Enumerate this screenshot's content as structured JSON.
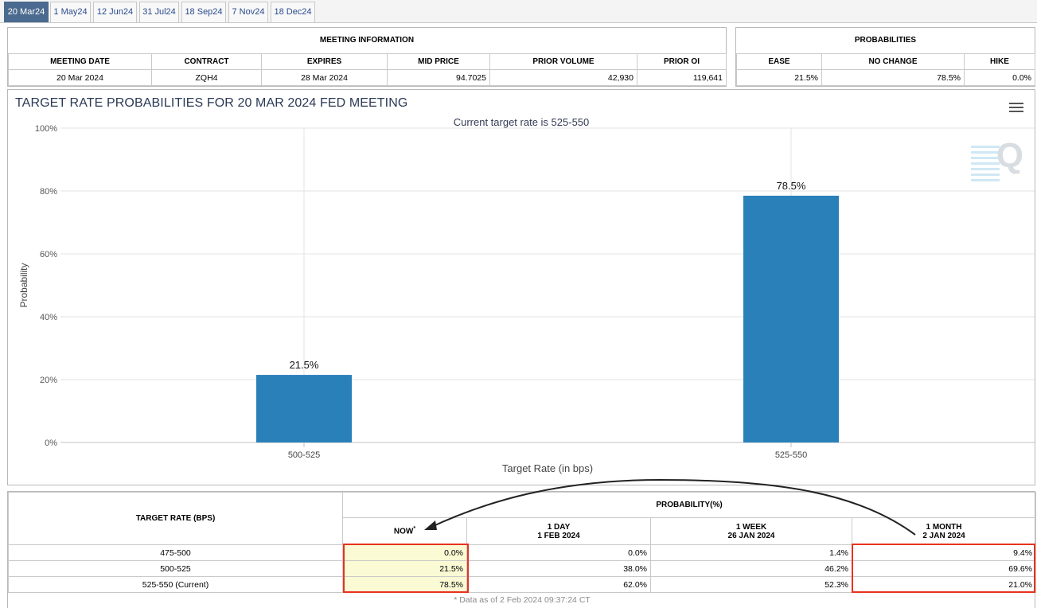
{
  "tabs": [
    "20 Mar24",
    "1 May24",
    "12 Jun24",
    "31 Jul24",
    "18 Sep24",
    "7 Nov24",
    "18 Dec24"
  ],
  "active_tab": 0,
  "meeting_info": {
    "title": "MEETING INFORMATION",
    "headers": [
      "MEETING DATE",
      "CONTRACT",
      "EXPIRES",
      "MID PRICE",
      "PRIOR VOLUME",
      "PRIOR OI"
    ],
    "row": [
      "20 Mar 2024",
      "ZQH4",
      "28 Mar 2024",
      "94.7025",
      "42,930",
      "119,641"
    ]
  },
  "probabilities": {
    "title": "PROBABILITIES",
    "headers": [
      "EASE",
      "NO CHANGE",
      "HIKE"
    ],
    "row": [
      "21.5%",
      "78.5%",
      "0.0%"
    ]
  },
  "chart": {
    "title": "TARGET RATE PROBABILITIES FOR 20 MAR 2024 FED MEETING",
    "subtitle": "Current target rate is 525-550",
    "xlabel": "Target Rate (in bps)",
    "ylabel": "Probability",
    "watermark": "Q",
    "menu_icon": "hamburger-menu-icon"
  },
  "chart_data": {
    "type": "bar",
    "categories": [
      "500-525",
      "525-550"
    ],
    "values": [
      21.5,
      78.5
    ],
    "data_labels": [
      "21.5%",
      "78.5%"
    ],
    "ylim": [
      0,
      100
    ],
    "yticks": [
      "0%",
      "20%",
      "40%",
      "60%",
      "80%",
      "100%"
    ],
    "bar_color": "#2a80b9",
    "grid": true
  },
  "history": {
    "target_header": "TARGET RATE (BPS)",
    "prob_header": "PROBABILITY(%)",
    "cols": [
      {
        "l1": "NOW",
        "l2": "",
        "sup": "*"
      },
      {
        "l1": "1 DAY",
        "l2": "1 FEB 2024",
        "sup": ""
      },
      {
        "l1": "1 WEEK",
        "l2": "26 JAN 2024",
        "sup": ""
      },
      {
        "l1": "1 MONTH",
        "l2": "2 JAN 2024",
        "sup": ""
      }
    ],
    "rows": [
      {
        "rate": "475-500",
        "vals": [
          "0.0%",
          "0.0%",
          "1.4%",
          "9.4%"
        ]
      },
      {
        "rate": "500-525",
        "vals": [
          "21.5%",
          "38.0%",
          "46.2%",
          "69.6%"
        ]
      },
      {
        "rate": "525-550 (Current)",
        "vals": [
          "78.5%",
          "62.0%",
          "52.3%",
          "21.0%"
        ]
      }
    ],
    "footnote": "* Data as of 2 Feb 2024 09:37:24 CT"
  },
  "colors": {
    "highlight_border": "#e8321e",
    "highlight_fill": "#fafad4",
    "accent": "#4b6a8f"
  }
}
